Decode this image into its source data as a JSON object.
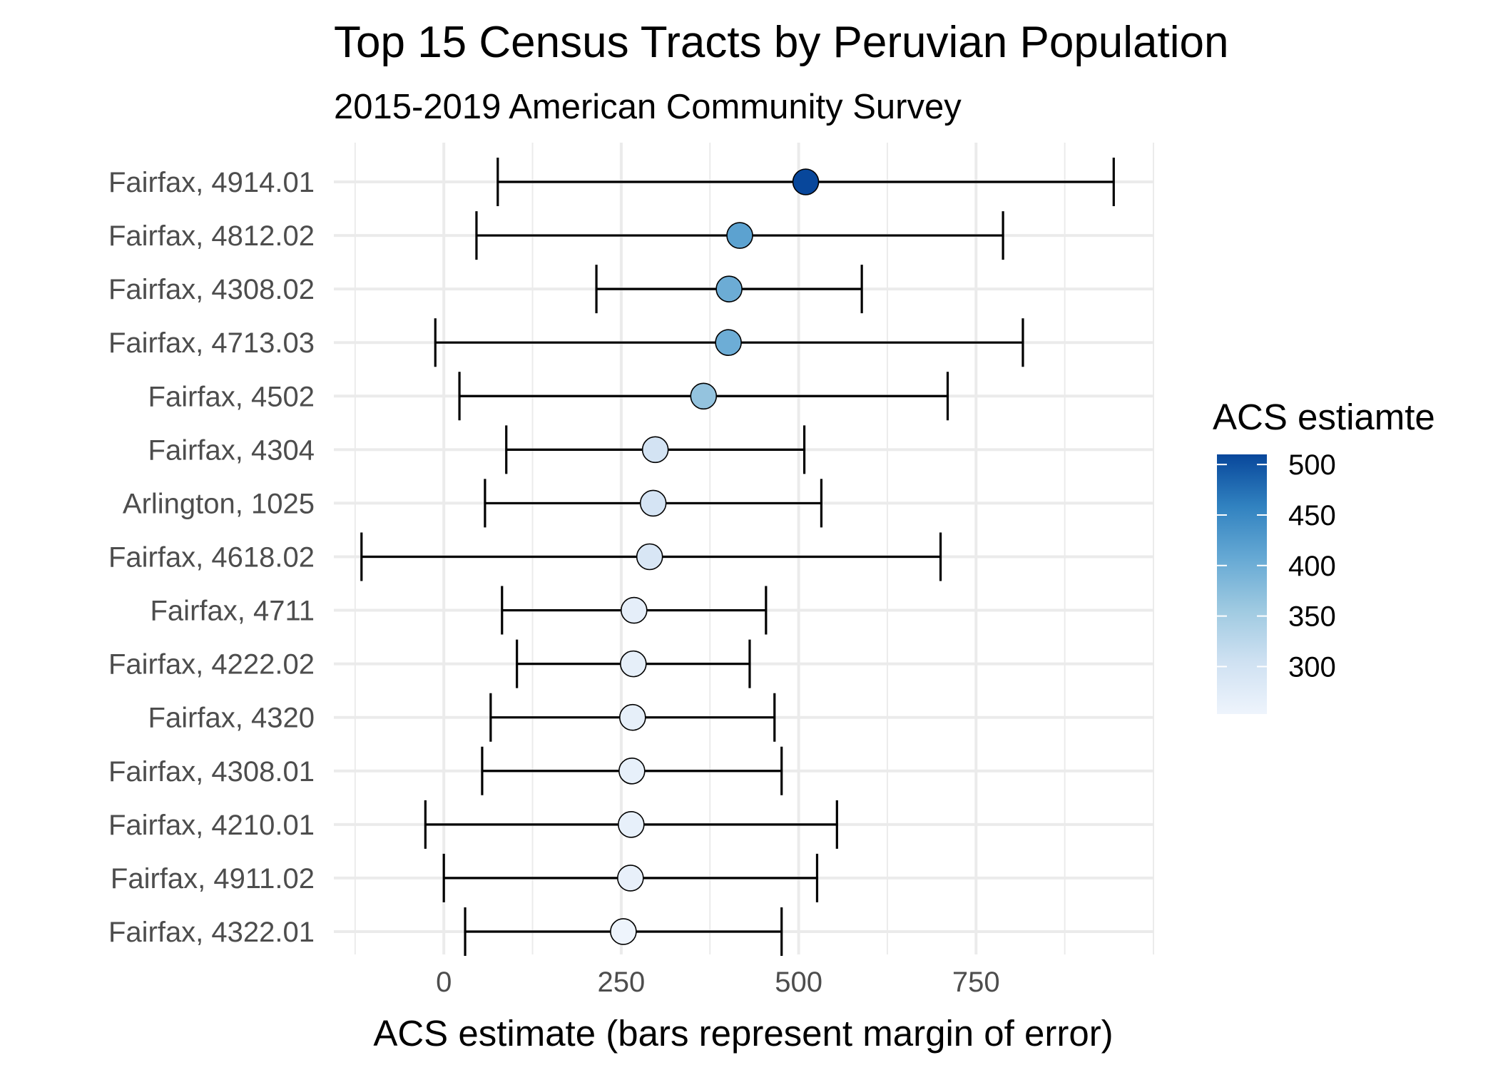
{
  "chart_data": {
    "type": "scatter",
    "title": "Top 15 Census Tracts by Peruvian Population",
    "subtitle": "2015-2019 American Community Survey",
    "xlabel": "ACS estimate (bars represent margin of error)",
    "ylabel": "",
    "xlim": [
      -155,
      1000
    ],
    "xticks": [
      0,
      250,
      500,
      750
    ],
    "grid": true,
    "legend": {
      "title": "ACS estiamte",
      "placement": "right",
      "ticks": [
        300,
        350,
        400,
        450,
        500
      ],
      "range": [
        253,
        510
      ],
      "colors": {
        "low": "#eef4fc",
        "high": "#08479b"
      }
    },
    "categories": [
      "Fairfax, 4914.01",
      "Fairfax, 4812.02",
      "Fairfax, 4308.02",
      "Fairfax, 4713.03",
      "Fairfax, 4502",
      "Fairfax, 4304",
      "Arlington, 1025",
      "Fairfax, 4618.02",
      "Fairfax, 4711",
      "Fairfax, 4222.02",
      "Fairfax, 4320",
      "Fairfax, 4308.01",
      "Fairfax, 4210.01",
      "Fairfax, 4911.02",
      "Fairfax, 4322.01"
    ],
    "estimates": [
      510,
      417,
      402,
      401,
      366,
      298,
      295,
      290,
      268,
      267,
      266,
      265,
      264,
      263,
      253
    ],
    "lower": [
      76,
      46,
      215,
      -12,
      22,
      88,
      58,
      -116,
      82,
      103,
      66,
      54,
      -26,
      0,
      30
    ],
    "upper": [
      944,
      788,
      589,
      816,
      710,
      508,
      532,
      700,
      454,
      431,
      466,
      476,
      554,
      526,
      476
    ]
  }
}
